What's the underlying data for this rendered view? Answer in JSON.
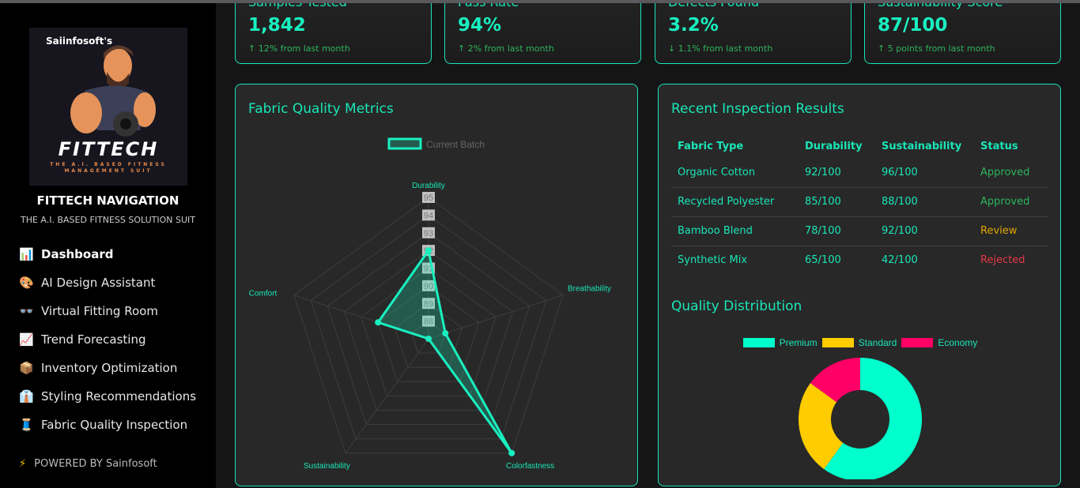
{
  "sidebar": {
    "logo_brand": "Saiinfosoft's",
    "logo_title": "FITTECH",
    "logo_sub": "THE A.I. BASED FITNESS MANAGEMENT SUIT",
    "title": "FITTECH NAVIGATION",
    "subtitle": "THE A.I. BASED FITNESS SOLUTION SUIT",
    "items": [
      {
        "icon": "📊",
        "label": "Dashboard"
      },
      {
        "icon": "🎨",
        "label": "AI Design Assistant"
      },
      {
        "icon": "👓",
        "label": "Virtual Fitting Room"
      },
      {
        "icon": "📈",
        "label": "Trend Forecasting"
      },
      {
        "icon": "📦",
        "label": "Inventory Optimization"
      },
      {
        "icon": "👔",
        "label": "Styling Recommendations"
      },
      {
        "icon": "🧵",
        "label": "Fabric Quality Inspection"
      }
    ],
    "powered_icon": "⚡",
    "powered": "POWERED BY Sainfosoft"
  },
  "stats": [
    {
      "title": "Samples Tested",
      "value": "1,842",
      "change": "↑ 12% from last month"
    },
    {
      "title": "Pass Rate",
      "value": "94%",
      "change": "↑ 2% from last month"
    },
    {
      "title": "Defects Found",
      "value": "3.2%",
      "change": "↓ 1.1% from last month"
    },
    {
      "title": "Sustainability Score",
      "value": "87/100",
      "change": "↑ 5 points from last month"
    }
  ],
  "radar": {
    "title": "Fabric Quality Metrics"
  },
  "inspection": {
    "title": "Recent Inspection Results",
    "headers": [
      "Fabric Type",
      "Durability",
      "Sustainability",
      "Status"
    ],
    "rows": [
      [
        "Organic Cotton",
        "92/100",
        "96/100",
        "Approved"
      ],
      [
        "Recycled Polyester",
        "85/100",
        "88/100",
        "Approved"
      ],
      [
        "Bamboo Blend",
        "78/100",
        "92/100",
        "Review"
      ],
      [
        "Synthetic Mix",
        "65/100",
        "42/100",
        "Rejected"
      ]
    ]
  },
  "status_colors": {
    "Approved": "#2fb35c",
    "Review": "#e0a800",
    "Rejected": "#e53945"
  },
  "distribution": {
    "title": "Quality Distribution"
  },
  "chart_data": [
    {
      "type": "radar",
      "title": "Fabric Quality Metrics",
      "legend": [
        "Current Batch"
      ],
      "legend_position": "top",
      "labels": [
        "Durability",
        "Breathability",
        "Colorfastness",
        "Sustainability",
        "Comfort"
      ],
      "series": [
        {
          "name": "Current Batch",
          "values": [
            92,
            88,
            95,
            87,
            90
          ]
        }
      ],
      "ticks": [
        "88",
        "89",
        "90",
        "91",
        "92",
        "93",
        "94",
        "95"
      ],
      "range": [
        87,
        95
      ],
      "color": "#19f0c0"
    },
    {
      "type": "pie",
      "variant": "doughnut",
      "title": "Quality Distribution",
      "labels": [
        "Premium",
        "Standard",
        "Economy"
      ],
      "values": [
        60,
        25,
        15
      ],
      "colors": [
        "#00ffcc",
        "#ffcc00",
        "#ff0066"
      ],
      "legend_position": "top"
    }
  ]
}
